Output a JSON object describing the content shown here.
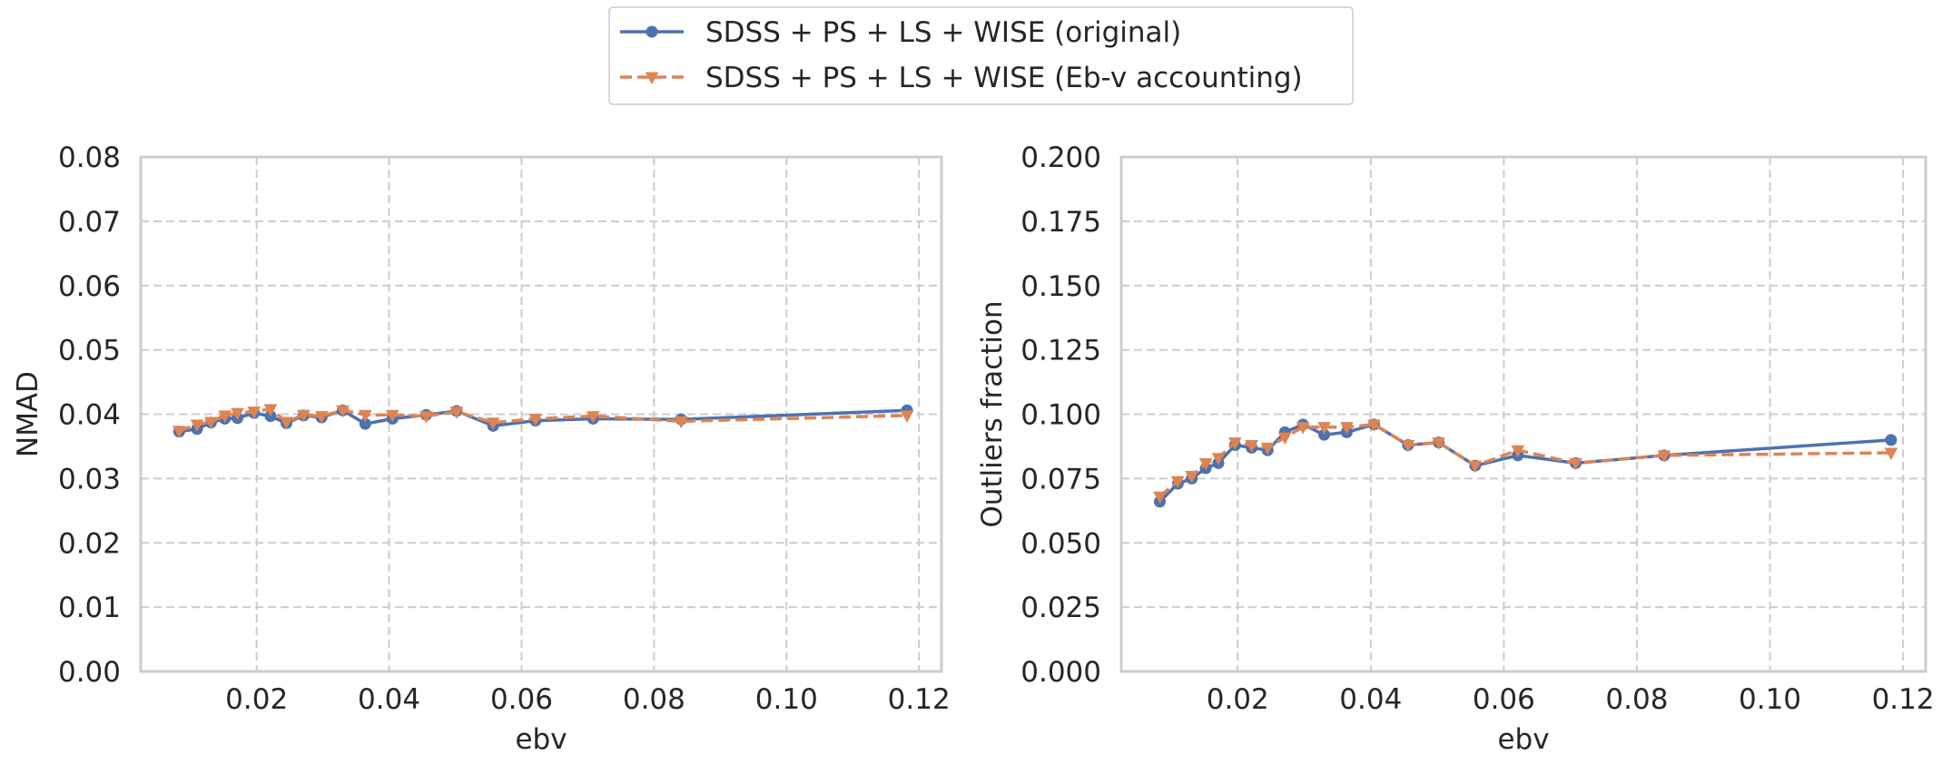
{
  "legend": {
    "items": [
      {
        "label": "SDSS + PS + LS + WISE (original)",
        "color": "#4c72b0",
        "marker": "circle",
        "dash": "solid"
      },
      {
        "label": "SDSS + PS + LS + WISE (Eb-v accounting)",
        "color": "#dd8452",
        "marker": "triangle-down",
        "dash": "dashed"
      }
    ],
    "placement": "top-center"
  },
  "chart_data": [
    {
      "type": "line",
      "title": "",
      "xlabel": "ebv",
      "ylabel": "NMAD",
      "xlim": [
        0.0025,
        0.1234
      ],
      "ylim": [
        0.0,
        0.08
      ],
      "x_ticks": [
        "0.02",
        "0.04",
        "0.06",
        "0.08",
        "0.10",
        "0.12"
      ],
      "y_ticks": [
        "0.00",
        "0.01",
        "0.02",
        "0.03",
        "0.04",
        "0.05",
        "0.06",
        "0.07",
        "0.08"
      ],
      "grid": true,
      "series": [
        {
          "name": "SDSS + PS + LS + WISE (original)",
          "x": [
            0.0083,
            0.011,
            0.0131,
            0.0152,
            0.0171,
            0.0196,
            0.0221,
            0.0245,
            0.0271,
            0.0298,
            0.033,
            0.0364,
            0.0405,
            0.0456,
            0.0502,
            0.0557,
            0.0621,
            0.0708,
            0.0841,
            0.1182
          ],
          "y": [
            0.0373,
            0.0377,
            0.0387,
            0.0393,
            0.0394,
            0.0402,
            0.0397,
            0.0386,
            0.0398,
            0.0395,
            0.0406,
            0.0385,
            0.0393,
            0.0399,
            0.0405,
            0.0382,
            0.039,
            0.0393,
            0.0392,
            0.0406
          ]
        },
        {
          "name": "SDSS + PS + LS + WISE (Eb-v accounting)",
          "x": [
            0.0083,
            0.011,
            0.0131,
            0.0152,
            0.0171,
            0.0196,
            0.0221,
            0.0245,
            0.0271,
            0.0298,
            0.033,
            0.0364,
            0.0405,
            0.0456,
            0.0502,
            0.0557,
            0.0621,
            0.0708,
            0.0841,
            0.1182
          ],
          "y": [
            0.0374,
            0.0384,
            0.0388,
            0.0398,
            0.0402,
            0.0404,
            0.0408,
            0.0388,
            0.0399,
            0.0397,
            0.0406,
            0.0399,
            0.0399,
            0.0397,
            0.0404,
            0.0387,
            0.0393,
            0.0397,
            0.0389,
            0.0398
          ]
        }
      ]
    },
    {
      "type": "line",
      "title": "",
      "xlabel": "ebv",
      "ylabel": "Outliers fraction",
      "xlim": [
        0.0025,
        0.1234
      ],
      "ylim": [
        0.0,
        0.2
      ],
      "x_ticks": [
        "0.02",
        "0.04",
        "0.06",
        "0.08",
        "0.10",
        "0.12"
      ],
      "y_ticks": [
        "0.000",
        "0.025",
        "0.050",
        "0.075",
        "0.100",
        "0.125",
        "0.150",
        "0.175",
        "0.200"
      ],
      "grid": true,
      "series": [
        {
          "name": "SDSS + PS + LS + WISE (original)",
          "x": [
            0.0083,
            0.011,
            0.0131,
            0.0152,
            0.0171,
            0.0196,
            0.0221,
            0.0245,
            0.0271,
            0.0298,
            0.033,
            0.0364,
            0.0405,
            0.0456,
            0.0502,
            0.0557,
            0.0621,
            0.0708,
            0.0841,
            0.1182
          ],
          "y": [
            0.066,
            0.073,
            0.075,
            0.079,
            0.081,
            0.088,
            0.087,
            0.086,
            0.093,
            0.096,
            0.092,
            0.093,
            0.096,
            0.088,
            0.089,
            0.08,
            0.084,
            0.081,
            0.084,
            0.09
          ]
        },
        {
          "name": "SDSS + PS + LS + WISE (Eb-v accounting)",
          "x": [
            0.0083,
            0.011,
            0.0131,
            0.0152,
            0.0171,
            0.0196,
            0.0221,
            0.0245,
            0.0271,
            0.0298,
            0.033,
            0.0364,
            0.0405,
            0.0456,
            0.0502,
            0.0557,
            0.0621,
            0.0708,
            0.0841,
            0.1182
          ],
          "y": [
            0.068,
            0.074,
            0.076,
            0.081,
            0.083,
            0.089,
            0.088,
            0.087,
            0.091,
            0.095,
            0.095,
            0.095,
            0.096,
            0.088,
            0.089,
            0.08,
            0.086,
            0.081,
            0.084,
            0.085
          ]
        }
      ]
    }
  ]
}
